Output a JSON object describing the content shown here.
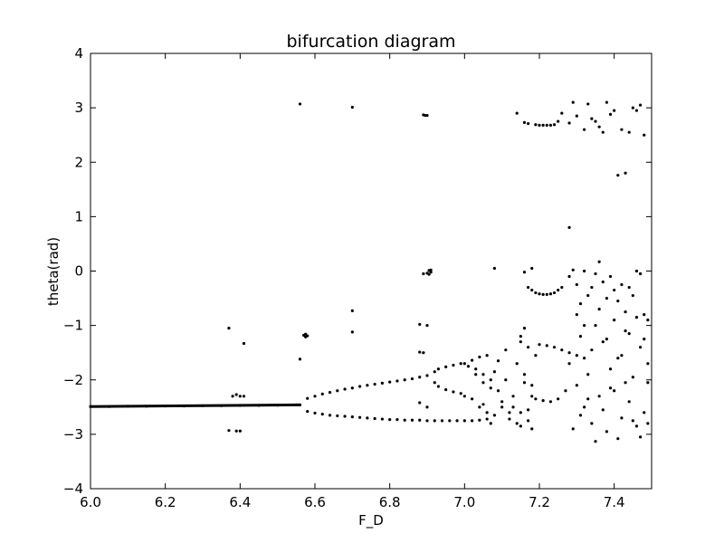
{
  "chart_data": {
    "type": "scatter",
    "title": "bifurcation diagram",
    "xlabel": "F_D",
    "ylabel": "theta(rad)",
    "xlim": [
      6.0,
      7.5
    ],
    "ylim": [
      -4,
      4
    ],
    "xticks": [
      6.0,
      6.2,
      6.4,
      6.6,
      6.8,
      7.0,
      7.2,
      7.4
    ],
    "xtick_labels": [
      "6.0",
      "6.2",
      "6.4",
      "6.6",
      "6.8",
      "7.0",
      "7.2",
      "7.4"
    ],
    "yticks": [
      -4,
      -3,
      -2,
      -1,
      0,
      1,
      2,
      3,
      4
    ],
    "ytick_labels": [
      "−4",
      "−3",
      "−2",
      "−1",
      "0",
      "1",
      "2",
      "3",
      "4"
    ],
    "grid": false,
    "marker_color": "#000000",
    "series": [
      {
        "points": [
          [
            6.0,
            -2.49
          ],
          [
            6.05,
            -2.49
          ],
          [
            6.1,
            -2.485
          ],
          [
            6.15,
            -2.485
          ],
          [
            6.2,
            -2.48
          ],
          [
            6.25,
            -2.48
          ],
          [
            6.3,
            -2.475
          ],
          [
            6.35,
            -2.475
          ],
          [
            6.4,
            -2.47
          ],
          [
            6.45,
            -2.47
          ],
          [
            6.5,
            -2.465
          ],
          [
            6.55,
            -2.46
          ],
          [
            6.56,
            -2.46
          ],
          [
            6.37,
            -1.05
          ],
          [
            6.41,
            -1.33
          ],
          [
            6.38,
            -2.3
          ],
          [
            6.39,
            -2.27
          ],
          [
            6.4,
            -2.3
          ],
          [
            6.41,
            -2.3
          ],
          [
            6.37,
            -2.93
          ],
          [
            6.39,
            -2.94
          ],
          [
            6.4,
            -2.94
          ],
          [
            6.56,
            3.07
          ],
          [
            6.7,
            3.01
          ],
          [
            6.7,
            -0.73
          ],
          [
            6.7,
            -1.12
          ],
          [
            6.56,
            -1.62
          ],
          [
            6.57,
            -1.18
          ],
          [
            6.575,
            -1.16
          ],
          [
            6.58,
            -1.19
          ],
          [
            6.575,
            -1.21
          ],
          [
            6.58,
            -2.34
          ],
          [
            6.6,
            -2.3
          ],
          [
            6.62,
            -2.26
          ],
          [
            6.64,
            -2.23
          ],
          [
            6.66,
            -2.2
          ],
          [
            6.68,
            -2.17
          ],
          [
            6.7,
            -2.15
          ],
          [
            6.72,
            -2.12
          ],
          [
            6.74,
            -2.1
          ],
          [
            6.76,
            -2.08
          ],
          [
            6.78,
            -2.06
          ],
          [
            6.8,
            -2.04
          ],
          [
            6.82,
            -2.02
          ],
          [
            6.84,
            -2.0
          ],
          [
            6.86,
            -1.98
          ],
          [
            6.88,
            -1.95
          ],
          [
            6.9,
            -1.92
          ],
          [
            6.58,
            -2.58
          ],
          [
            6.6,
            -2.61
          ],
          [
            6.62,
            -2.63
          ],
          [
            6.64,
            -2.65
          ],
          [
            6.66,
            -2.66
          ],
          [
            6.68,
            -2.67
          ],
          [
            6.7,
            -2.68
          ],
          [
            6.72,
            -2.69
          ],
          [
            6.74,
            -2.7
          ],
          [
            6.76,
            -2.71
          ],
          [
            6.78,
            -2.72
          ],
          [
            6.8,
            -2.73
          ],
          [
            6.82,
            -2.73
          ],
          [
            6.84,
            -2.74
          ],
          [
            6.86,
            -2.74
          ],
          [
            6.88,
            -2.74
          ],
          [
            6.9,
            -2.75
          ],
          [
            6.92,
            -2.75
          ],
          [
            6.94,
            -2.75
          ],
          [
            6.96,
            -2.75
          ],
          [
            6.98,
            -2.75
          ],
          [
            7.0,
            -2.75
          ],
          [
            7.02,
            -2.75
          ],
          [
            7.04,
            -2.74
          ],
          [
            7.06,
            -2.72
          ],
          [
            6.89,
            2.87
          ],
          [
            6.895,
            2.86
          ],
          [
            6.9,
            2.86
          ],
          [
            6.88,
            -0.98
          ],
          [
            6.9,
            -1.0
          ],
          [
            6.88,
            -1.49
          ],
          [
            6.89,
            -1.5
          ],
          [
            6.88,
            -2.42
          ],
          [
            6.9,
            -2.5
          ],
          [
            6.89,
            -0.05
          ],
          [
            6.9,
            -0.04
          ],
          [
            6.905,
            0.01
          ],
          [
            6.91,
            -0.02
          ],
          [
            6.91,
            0.02
          ],
          [
            6.905,
            -0.06
          ],
          [
            6.92,
            -1.85
          ],
          [
            6.93,
            -1.8
          ],
          [
            6.95,
            -1.76
          ],
          [
            6.97,
            -1.73
          ],
          [
            6.99,
            -1.7
          ],
          [
            6.92,
            -2.05
          ],
          [
            6.93,
            -2.12
          ],
          [
            6.95,
            -2.18
          ],
          [
            6.97,
            -2.22
          ],
          [
            6.99,
            -2.25
          ],
          [
            7.0,
            -1.7
          ],
          [
            7.01,
            -1.75
          ],
          [
            7.02,
            -1.64
          ],
          [
            7.03,
            -1.8
          ],
          [
            7.04,
            -1.58
          ],
          [
            7.05,
            -1.9
          ],
          [
            7.06,
            -1.55
          ],
          [
            7.07,
            -2.0
          ],
          [
            7.08,
            0.05
          ],
          [
            7.08,
            -1.85
          ],
          [
            7.09,
            -2.2
          ],
          [
            7.1,
            -2.4
          ],
          [
            7.11,
            -1.45
          ],
          [
            7.12,
            -2.6
          ],
          [
            7.13,
            -2.3
          ],
          [
            7.14,
            -1.7
          ],
          [
            7.15,
            -1.3
          ],
          [
            7.16,
            -1.9
          ],
          [
            7.17,
            -2.55
          ],
          [
            7.18,
            -2.1
          ],
          [
            7.19,
            -1.55
          ],
          [
            7.0,
            -2.3
          ],
          [
            7.02,
            -2.35
          ],
          [
            7.04,
            -2.5
          ],
          [
            7.05,
            -2.45
          ],
          [
            7.06,
            -2.6
          ],
          [
            7.07,
            -2.8
          ],
          [
            7.08,
            -2.65
          ],
          [
            7.1,
            -2.5
          ],
          [
            7.12,
            -2.72
          ],
          [
            7.14,
            -2.8
          ],
          [
            7.15,
            -2.6
          ],
          [
            7.16,
            -2.05
          ],
          [
            7.17,
            -2.75
          ],
          [
            7.18,
            -2.3
          ],
          [
            7.03,
            -1.9
          ],
          [
            7.05,
            -2.05
          ],
          [
            7.07,
            -2.15
          ],
          [
            7.09,
            -1.65
          ],
          [
            7.11,
            -2.0
          ],
          [
            7.13,
            -2.5
          ],
          [
            7.15,
            -1.2
          ],
          [
            7.16,
            -1.05
          ],
          [
            7.17,
            -1.4
          ],
          [
            7.15,
            -2.85
          ],
          [
            7.18,
            -2.9
          ],
          [
            7.14,
            2.9
          ],
          [
            7.16,
            2.73
          ],
          [
            7.17,
            2.71
          ],
          [
            7.19,
            2.69
          ],
          [
            7.2,
            2.68
          ],
          [
            7.21,
            2.68
          ],
          [
            7.22,
            2.68
          ],
          [
            7.23,
            2.68
          ],
          [
            7.24,
            2.69
          ],
          [
            7.25,
            2.75
          ],
          [
            7.26,
            2.9
          ],
          [
            7.28,
            2.72
          ],
          [
            7.29,
            3.1
          ],
          [
            7.3,
            2.85
          ],
          [
            7.32,
            2.6
          ],
          [
            7.33,
            3.07
          ],
          [
            7.34,
            2.8
          ],
          [
            7.35,
            2.75
          ],
          [
            7.36,
            2.65
          ],
          [
            7.37,
            2.55
          ],
          [
            7.38,
            3.1
          ],
          [
            7.39,
            2.88
          ],
          [
            7.4,
            2.95
          ],
          [
            7.41,
            1.76
          ],
          [
            7.42,
            2.6
          ],
          [
            7.43,
            1.8
          ],
          [
            7.44,
            2.55
          ],
          [
            7.45,
            3.0
          ],
          [
            7.46,
            2.95
          ],
          [
            7.47,
            3.05
          ],
          [
            7.48,
            2.5
          ],
          [
            7.16,
            -0.02
          ],
          [
            7.18,
            0.05
          ],
          [
            7.17,
            -0.3
          ],
          [
            7.18,
            -0.35
          ],
          [
            7.19,
            -0.4
          ],
          [
            7.2,
            -0.42
          ],
          [
            7.21,
            -0.43
          ],
          [
            7.22,
            -0.43
          ],
          [
            7.23,
            -0.42
          ],
          [
            7.24,
            -0.4
          ],
          [
            7.25,
            -0.35
          ],
          [
            7.26,
            -0.3
          ],
          [
            7.28,
            -0.1
          ],
          [
            7.29,
            0.02
          ],
          [
            7.3,
            -0.25
          ],
          [
            7.31,
            -0.6
          ],
          [
            7.32,
            0.0
          ],
          [
            7.33,
            -0.45
          ],
          [
            7.34,
            -0.3
          ],
          [
            7.35,
            -0.05
          ],
          [
            7.36,
            0.17
          ],
          [
            7.37,
            -0.2
          ],
          [
            7.38,
            -0.5
          ],
          [
            7.39,
            -0.1
          ],
          [
            7.4,
            -0.35
          ],
          [
            7.41,
            -0.55
          ],
          [
            7.42,
            -0.25
          ],
          [
            7.43,
            -0.75
          ],
          [
            7.44,
            -0.3
          ],
          [
            7.45,
            -0.45
          ],
          [
            7.46,
            0.0
          ],
          [
            7.47,
            -0.05
          ],
          [
            7.48,
            -0.8
          ],
          [
            7.49,
            -0.9
          ],
          [
            7.2,
            -1.35
          ],
          [
            7.22,
            -1.37
          ],
          [
            7.24,
            -1.4
          ],
          [
            7.26,
            -1.45
          ],
          [
            7.28,
            -1.5
          ],
          [
            7.3,
            -1.55
          ],
          [
            7.32,
            -1.6
          ],
          [
            7.19,
            -2.35
          ],
          [
            7.21,
            -2.38
          ],
          [
            7.23,
            -2.4
          ],
          [
            7.25,
            -2.35
          ],
          [
            7.27,
            -2.2
          ],
          [
            7.28,
            0.8
          ],
          [
            7.28,
            -1.7
          ],
          [
            7.29,
            -2.9
          ],
          [
            7.3,
            -2.1
          ],
          [
            7.31,
            -1.2
          ],
          [
            7.32,
            -2.5
          ],
          [
            7.33,
            -1.9
          ],
          [
            7.34,
            -2.8
          ],
          [
            7.35,
            -1.0
          ],
          [
            7.36,
            -2.3
          ],
          [
            7.37,
            -1.3
          ],
          [
            7.38,
            -2.95
          ],
          [
            7.39,
            -1.8
          ],
          [
            7.4,
            -2.2
          ],
          [
            7.41,
            -1.6
          ],
          [
            7.42,
            -2.7
          ],
          [
            7.43,
            -1.1
          ],
          [
            7.44,
            -2.4
          ],
          [
            7.45,
            -1.95
          ],
          [
            7.46,
            -2.85
          ],
          [
            7.47,
            -1.4
          ],
          [
            7.48,
            -2.6
          ],
          [
            7.49,
            -1.7
          ],
          [
            7.3,
            -0.8
          ],
          [
            7.32,
            -1.0
          ],
          [
            7.34,
            -1.45
          ],
          [
            7.36,
            -0.7
          ],
          [
            7.38,
            -1.25
          ],
          [
            7.4,
            -0.9
          ],
          [
            7.42,
            -1.55
          ],
          [
            7.44,
            -1.15
          ],
          [
            7.46,
            -0.85
          ],
          [
            7.48,
            -1.25
          ],
          [
            7.49,
            -2.05
          ],
          [
            7.31,
            -2.65
          ],
          [
            7.33,
            -2.35
          ],
          [
            7.35,
            -3.13
          ],
          [
            7.37,
            -2.55
          ],
          [
            7.39,
            -2.15
          ],
          [
            7.41,
            -3.08
          ],
          [
            7.43,
            -2.05
          ],
          [
            7.45,
            -2.75
          ],
          [
            7.47,
            -3.05
          ],
          [
            7.49,
            -2.8
          ]
        ]
      }
    ]
  }
}
